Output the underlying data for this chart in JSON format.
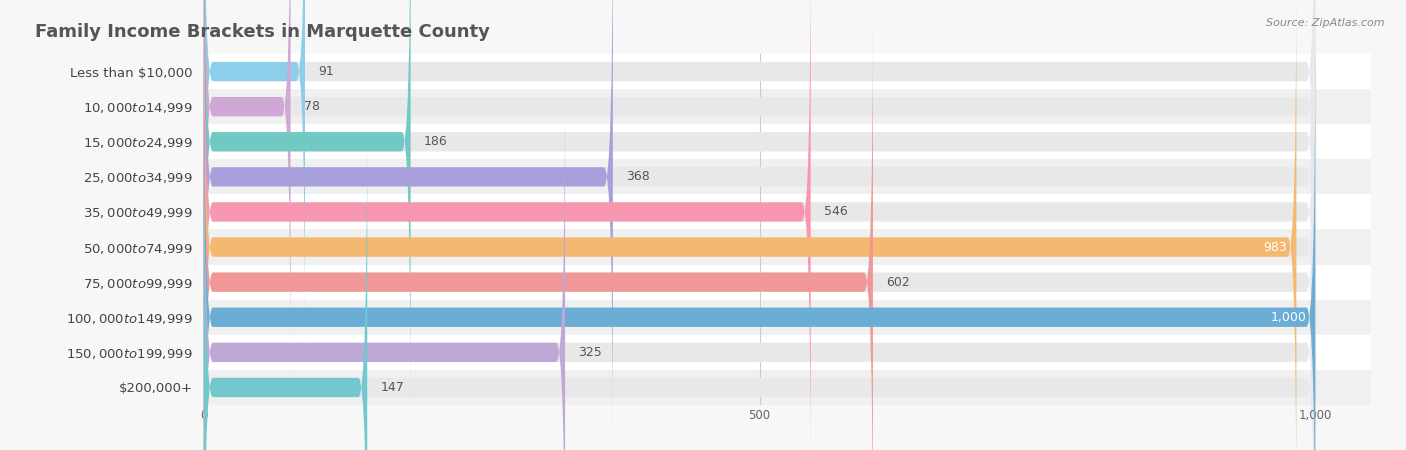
{
  "title": "Family Income Brackets in Marquette County",
  "source": "Source: ZipAtlas.com",
  "categories": [
    "Less than $10,000",
    "$10,000 to $14,999",
    "$15,000 to $24,999",
    "$25,000 to $34,999",
    "$35,000 to $49,999",
    "$50,000 to $74,999",
    "$75,000 to $99,999",
    "$100,000 to $149,999",
    "$150,000 to $199,999",
    "$200,000+"
  ],
  "values": [
    91,
    78,
    186,
    368,
    546,
    983,
    602,
    1000,
    325,
    147
  ],
  "bar_colors": [
    "#8DCFEA",
    "#CFA8D5",
    "#72C8C2",
    "#A8A0DC",
    "#F898B0",
    "#F5B870",
    "#F09898",
    "#6AAED6",
    "#BFA8D5",
    "#72C8CC"
  ],
  "xlim_max": 1000,
  "xlim_display": 1050,
  "xticks": [
    0,
    500,
    1000
  ],
  "bg_color": "#f7f7f7",
  "row_colors": [
    "#ffffff",
    "#f0f0f0"
  ],
  "bar_bg_color": "#e8e8e8",
  "title_fontsize": 13,
  "label_fontsize": 9.5,
  "value_fontsize": 9,
  "bar_height": 0.55
}
